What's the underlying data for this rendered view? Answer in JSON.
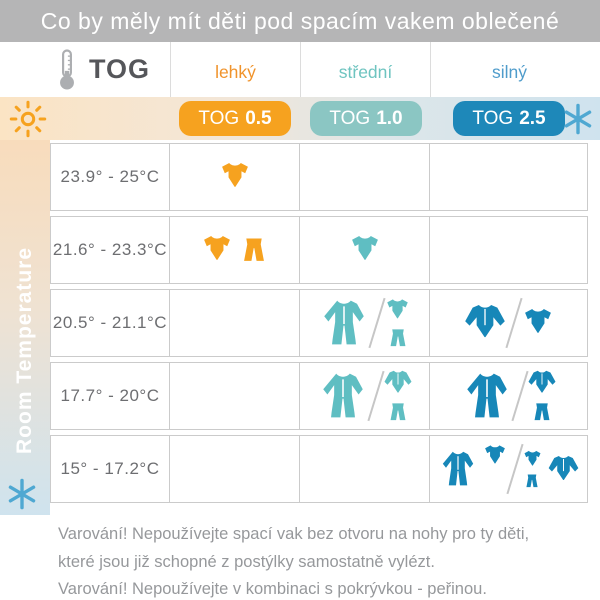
{
  "title": "Co by měly mít děti pod spacím vakem oblečené",
  "header": {
    "tog_label": "TOG",
    "thermometer_icon": "thermometer-icon",
    "columns": [
      {
        "id": "lehky",
        "label": "lehký",
        "badge_prefix": "TOG",
        "badge_value": "0.5",
        "label_color": "#f0932b",
        "badge_bg": "#f6a21f",
        "icon_color": "#f6a21f"
      },
      {
        "id": "stredni",
        "label": "střední",
        "badge_prefix": "TOG",
        "badge_value": "1.0",
        "label_color": "#6ec4c0",
        "badge_bg": "#8bc6c3",
        "icon_color": "#5fbec2"
      },
      {
        "id": "silny",
        "label": "silný",
        "badge_prefix": "TOG",
        "badge_value": "2.5",
        "label_color": "#4f9ccb",
        "badge_bg": "#1e88b9",
        "icon_color": "#1787b8"
      }
    ]
  },
  "sidebar": {
    "label": "Room Temperature",
    "sun_icon": "sun-icon",
    "snowflake_icon": "snowflake-icon",
    "sun_color": "#f6a21f",
    "snowflake_color": "#4fa8d2"
  },
  "table": {
    "rows": [
      {
        "temp": "23.9° - 25°C",
        "cells": [
          {
            "column": "lehky",
            "options": [
              {
                "items": [
                  "bodysuit"
                ]
              }
            ]
          },
          {
            "column": "stredni",
            "options": []
          },
          {
            "column": "silny",
            "options": []
          }
        ]
      },
      {
        "temp": "21.6° - 23.3°C",
        "cells": [
          {
            "column": "lehky",
            "options": [
              {
                "items": [
                  "bodysuit",
                  "pants"
                ]
              }
            ]
          },
          {
            "column": "stredni",
            "options": [
              {
                "items": [
                  "bodysuit"
                ]
              }
            ]
          },
          {
            "column": "silny",
            "options": []
          }
        ]
      },
      {
        "temp": "20.5° - 21.1°C",
        "cells": [
          {
            "column": "lehky",
            "options": []
          },
          {
            "column": "stredni",
            "options": [
              {
                "items": [
                  "sleepsuit"
                ]
              },
              {
                "items": [
                  [
                    "bodysuit",
                    "pants"
                  ]
                ]
              }
            ]
          },
          {
            "column": "silny",
            "options": [
              {
                "items": [
                  "longsleeve"
                ]
              },
              {
                "items": [
                  "bodysuit"
                ]
              }
            ]
          }
        ]
      },
      {
        "temp": "17.7° - 20°C",
        "cells": [
          {
            "column": "lehky",
            "options": []
          },
          {
            "column": "stredni",
            "options": [
              {
                "items": [
                  "sleepsuit"
                ]
              },
              {
                "items": [
                  [
                    "longsleeve",
                    "pants"
                  ]
                ]
              }
            ]
          },
          {
            "column": "silny",
            "options": [
              {
                "items": [
                  "sleepsuit"
                ]
              },
              {
                "items": [
                  [
                    "longsleeve",
                    "pants"
                  ]
                ]
              }
            ]
          }
        ]
      },
      {
        "temp": "15° - 17.2°C",
        "cells": [
          {
            "column": "lehky",
            "options": []
          },
          {
            "column": "stredni",
            "options": []
          },
          {
            "column": "silny",
            "options": [
              {
                "items": [
                  "sleepsuit",
                  "bodysuit"
                ]
              },
              {
                "items": [
                  [
                    "bodysuit",
                    "pants"
                  ],
                  "longsleeve"
                ]
              }
            ]
          }
        ]
      }
    ]
  },
  "warnings": [
    "Varování! Nepoužívejte spací vak bez otvoru na nohy pro ty děti,",
    "které jsou již schopné z postýlky samostatně vylézt.",
    "Varování! Nepoužívejte v kombinaci s pokrývkou - peřinou."
  ],
  "chart_data": {
    "type": "table",
    "title": "Co by měly mít děti pod spacím vakem oblečené",
    "row_axis_label": "Room Temperature",
    "columns": [
      "lehký TOG 0.5",
      "střední TOG 1.0",
      "silný TOG 2.5"
    ],
    "rows": [
      "23.9° - 25°C",
      "21.6° - 23.3°C",
      "20.5° - 21.1°C",
      "17.7° - 20°C",
      "15° - 17.2°C"
    ],
    "cells": [
      [
        "bodysuit",
        "",
        ""
      ],
      [
        "bodysuit + pants",
        "bodysuit",
        ""
      ],
      [
        "",
        "sleepsuit OR bodysuit + pants",
        "longsleeve bodysuit OR bodysuit"
      ],
      [
        "",
        "sleepsuit OR longsleeve top + pants",
        "sleepsuit OR longsleeve top + pants"
      ],
      [
        "",
        "",
        "sleepsuit + bodysuit OR bodysuit + pants + longsleeve top"
      ]
    ]
  }
}
